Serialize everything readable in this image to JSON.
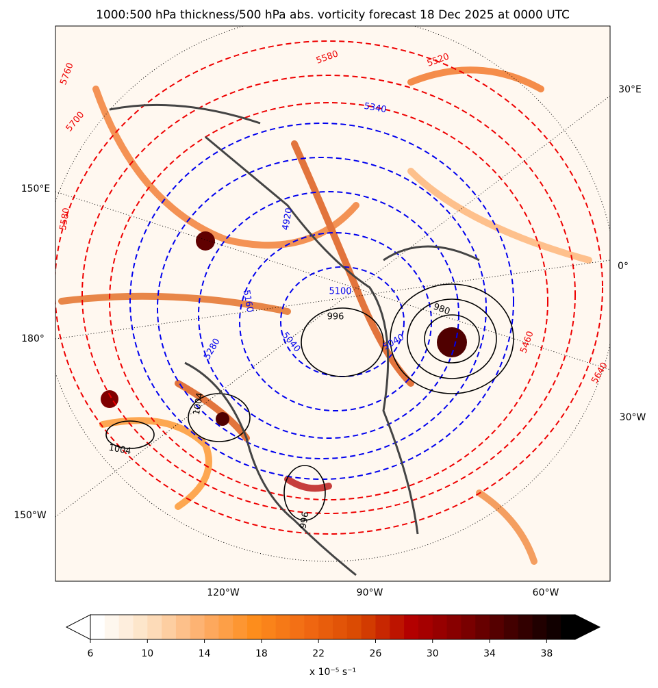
{
  "title": "1000:500 hPa thickness/500 hPa abs. vorticity forecast 18 Dec 2025 at 0000 UTC",
  "map": {
    "left_labels": [
      "150°E",
      "180°",
      "150°W"
    ],
    "right_labels": [
      "30°E",
      "0°",
      "30°W"
    ],
    "bottom_labels": [
      "120°W",
      "90°W",
      "60°W"
    ],
    "thickness_labels_red": [
      "5760",
      "5700",
      "5580",
      "5580",
      "5520",
      "5460",
      "5640"
    ],
    "thickness_labels_blue": [
      "5340",
      "5100",
      "5040",
      "5280",
      "4920",
      "5160",
      "5040"
    ],
    "pressure_labels": [
      "1004",
      "996",
      "980",
      "1004",
      "996"
    ]
  },
  "colorbar": {
    "lim": [
      6,
      40
    ],
    "step": 1,
    "ticks": [
      6,
      10,
      14,
      18,
      22,
      26,
      30,
      34,
      38
    ],
    "cmap": [
      "#ffffff",
      "#fde0c0",
      "#fdae6b",
      "#fd8d1c",
      "#f16913",
      "#d94801",
      "#b30000",
      "#7f0000",
      "#3d0000",
      "#000000"
    ],
    "label": "x 10⁻⁵ s⁻¹"
  }
}
